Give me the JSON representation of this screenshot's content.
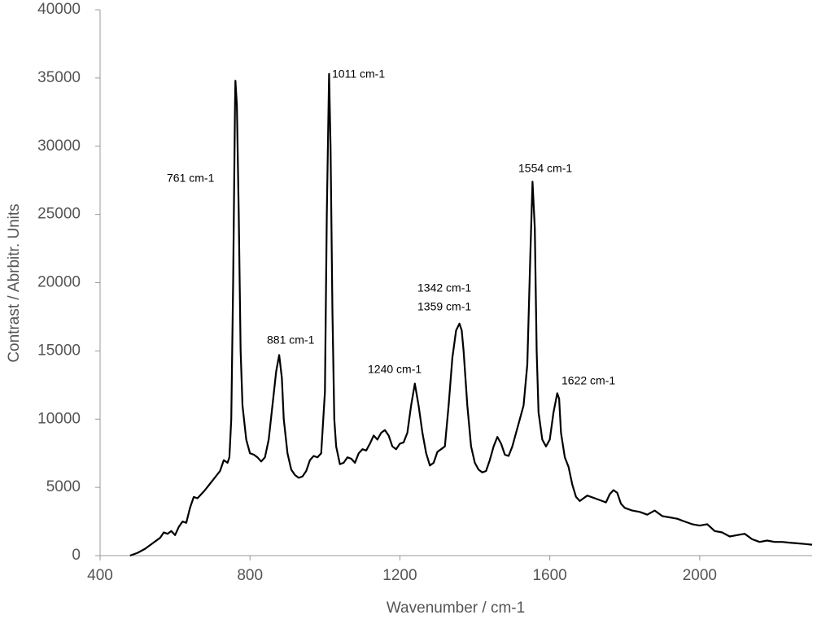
{
  "chart_data": {
    "type": "line",
    "xlabel": "Wavenumber  / cm-1",
    "ylabel": "Contrast / Abrbitr. Units",
    "color": "#000000",
    "xlim": [
      400,
      2300
    ],
    "xticks": [
      400,
      800,
      1200,
      1600,
      2000
    ],
    "ylim": [
      0,
      40000
    ],
    "yticks": [
      0,
      5000,
      10000,
      15000,
      20000,
      25000,
      30000,
      35000,
      40000
    ],
    "annotations": [
      "761 cm-1",
      "881 cm-1",
      "1011 cm-1",
      "1240 cm-1",
      "1342 cm-1",
      "1359 cm-1",
      "1554 cm-1",
      "1622 cm-1"
    ],
    "x": [
      480,
      500,
      520,
      540,
      560,
      570,
      580,
      590,
      600,
      610,
      620,
      630,
      640,
      650,
      660,
      680,
      700,
      720,
      730,
      740,
      745,
      750,
      755,
      760,
      761,
      765,
      770,
      775,
      780,
      790,
      800,
      810,
      820,
      830,
      840,
      850,
      860,
      870,
      878,
      885,
      890,
      900,
      910,
      920,
      930,
      940,
      950,
      960,
      970,
      980,
      990,
      1000,
      1005,
      1011,
      1015,
      1020,
      1025,
      1030,
      1040,
      1050,
      1060,
      1070,
      1080,
      1090,
      1100,
      1110,
      1120,
      1130,
      1140,
      1150,
      1160,
      1170,
      1180,
      1190,
      1200,
      1210,
      1220,
      1230,
      1240,
      1250,
      1260,
      1270,
      1280,
      1290,
      1300,
      1310,
      1320,
      1330,
      1340,
      1350,
      1359,
      1365,
      1370,
      1380,
      1390,
      1400,
      1410,
      1420,
      1430,
      1440,
      1450,
      1460,
      1470,
      1480,
      1490,
      1500,
      1510,
      1520,
      1530,
      1540,
      1548,
      1554,
      1560,
      1565,
      1570,
      1580,
      1590,
      1600,
      1610,
      1620,
      1625,
      1630,
      1640,
      1650,
      1660,
      1670,
      1680,
      1690,
      1700,
      1720,
      1740,
      1750,
      1760,
      1770,
      1780,
      1790,
      1800,
      1820,
      1840,
      1860,
      1880,
      1900,
      1920,
      1940,
      1960,
      1980,
      2000,
      2020,
      2040,
      2060,
      2080,
      2100,
      2120,
      2140,
      2160,
      2180,
      2200,
      2220,
      2240,
      2260,
      2280,
      2300
    ],
    "values": [
      0,
      200,
      500,
      900,
      1300,
      1700,
      1600,
      1800,
      1500,
      2100,
      2500,
      2400,
      3500,
      4300,
      4200,
      4800,
      5500,
      6200,
      7000,
      6800,
      7200,
      10000,
      20000,
      33000,
      34800,
      33000,
      25000,
      15000,
      11000,
      8500,
      7500,
      7400,
      7200,
      6900,
      7200,
      8500,
      11000,
      13500,
      14700,
      13000,
      10000,
      7500,
      6300,
      5900,
      5700,
      5800,
      6200,
      7000,
      7300,
      7200,
      7500,
      12000,
      25000,
      35300,
      30000,
      18000,
      10000,
      8000,
      6700,
      6800,
      7200,
      7100,
      6800,
      7500,
      7800,
      7700,
      8200,
      8800,
      8500,
      9000,
      9200,
      8800,
      8000,
      7800,
      8200,
      8300,
      9000,
      11000,
      12600,
      11000,
      9000,
      7500,
      6600,
      6800,
      7600,
      7800,
      8000,
      11000,
      14500,
      16500,
      17000,
      16500,
      15000,
      11000,
      8000,
      6800,
      6300,
      6100,
      6200,
      7000,
      8000,
      8700,
      8200,
      7400,
      7300,
      8000,
      9000,
      10000,
      11000,
      14000,
      22000,
      27400,
      24000,
      15000,
      10500,
      8500,
      8000,
      8500,
      10500,
      11900,
      11500,
      9000,
      7200,
      6500,
      5200,
      4300,
      4000,
      4200,
      4400,
      4200,
      4000,
      3900,
      4500,
      4800,
      4600,
      3800,
      3500,
      3300,
      3200,
      3000,
      3300,
      2900,
      2800,
      2700,
      2500,
      2300,
      2200,
      2300,
      1800,
      1700,
      1400,
      1500,
      1600,
      1200,
      1000,
      1100,
      1000,
      1000,
      950,
      900,
      850,
      800
    ]
  }
}
